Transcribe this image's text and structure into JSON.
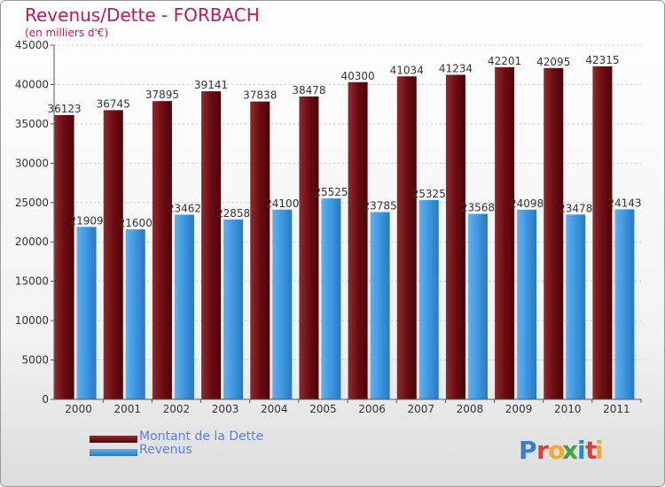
{
  "title": "Revenus/Dette - FORBACH",
  "subtitle": "(en milliers d'€)",
  "legend": [
    {
      "label": "Montant de la Dette",
      "color": "#6b0d12"
    },
    {
      "label": "Revenus",
      "color": "#3d97e0"
    }
  ],
  "brand": {
    "letters": [
      "P",
      "r",
      "o",
      "x",
      "i",
      "t",
      "i"
    ],
    "colors": [
      "#3a7bd5",
      "#e53935",
      "#f9a825",
      "#43a047",
      "#1e88e5",
      "#e53935",
      "#f9a825"
    ]
  },
  "chart_data": {
    "type": "bar",
    "categories": [
      "2000",
      "2001",
      "2002",
      "2003",
      "2004",
      "2005",
      "2006",
      "2007",
      "2008",
      "2009",
      "2010",
      "2011"
    ],
    "series": [
      {
        "name": "Montant de la Dette",
        "values": [
          36123,
          36745,
          37895,
          39141,
          37838,
          38478,
          40300,
          41034,
          41234,
          42201,
          42095,
          42315
        ]
      },
      {
        "name": "Revenus",
        "values": [
          21909,
          21600,
          23462,
          22858,
          24100,
          25525,
          23785,
          25325,
          23568,
          24098,
          23478,
          24143
        ]
      }
    ],
    "yticks": [
      "0",
      "5000",
      "10000",
      "15000",
      "20000",
      "25000",
      "30000",
      "35000",
      "40000",
      "45000"
    ],
    "ylim": [
      0,
      45000
    ],
    "grid": true,
    "legend_position": "bottom-left"
  }
}
